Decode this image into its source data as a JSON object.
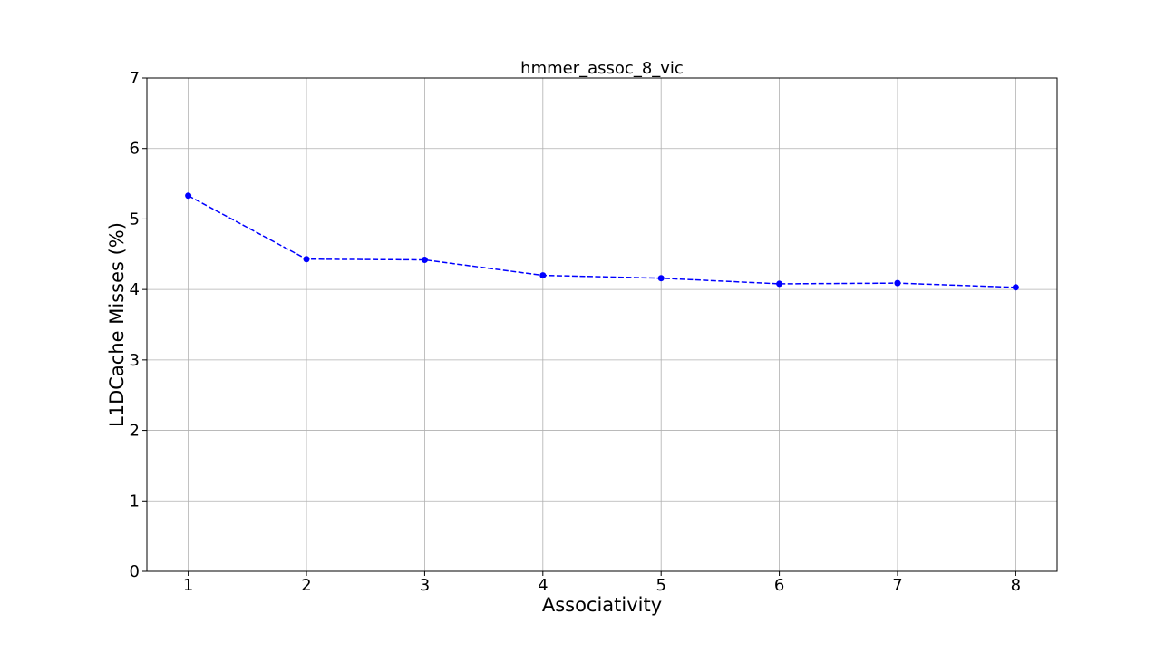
{
  "chart_data": {
    "type": "line",
    "title": "hmmer_assoc_8_vic",
    "xlabel": "Associativity",
    "ylabel": "L1DCache Misses (%)",
    "x": [
      1,
      2,
      3,
      4,
      5,
      6,
      7,
      8
    ],
    "x_tick_labels": [
      "1",
      "2",
      "3",
      "4",
      "5",
      "6",
      "7",
      "8"
    ],
    "ylim": [
      0,
      7
    ],
    "y_ticks": [
      0,
      1,
      2,
      3,
      4,
      5,
      6,
      7
    ],
    "y_tick_labels": [
      "0",
      "1",
      "2",
      "3",
      "4",
      "5",
      "6",
      "7"
    ],
    "grid": true,
    "series": [
      {
        "color": "#0000ff",
        "line_style": "dashed",
        "marker": "circle",
        "values": [
          5.33,
          4.43,
          4.42,
          4.2,
          4.16,
          4.08,
          4.09,
          4.03
        ]
      }
    ]
  }
}
